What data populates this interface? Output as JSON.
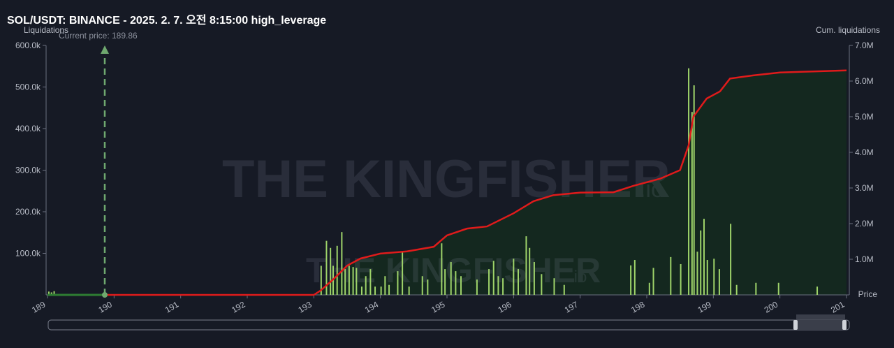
{
  "chart_data": {
    "type": "bar",
    "title": "SOL/USDT: BINANCE - 2025. 2. 7. 오전 8:15:00 high_leverage",
    "y_label": "Liquidations",
    "y2_label": "Cum. liquidations",
    "x_label": "Price",
    "annotation": {
      "text": "Current price: 189.86",
      "x": 189.86
    },
    "watermark": "THE KINGFISHER",
    "watermark_suffix": ".io",
    "xlim": [
      189,
      201
    ],
    "xticks": [
      189,
      190,
      191,
      192,
      193,
      194,
      195,
      196,
      197,
      198,
      199,
      200,
      201
    ],
    "ylim": [
      0,
      600000
    ],
    "yticks": [
      {
        "value": 100000,
        "label": "100.0k"
      },
      {
        "value": 200000,
        "label": "200.0k"
      },
      {
        "value": 300000,
        "label": "300.0k"
      },
      {
        "value": 400000,
        "label": "400.0k"
      },
      {
        "value": 500000,
        "label": "500.0k"
      },
      {
        "value": 600000,
        "label": "600.0k"
      }
    ],
    "y2lim": [
      0,
      7000000
    ],
    "y2ticks": [
      {
        "value": 1000000,
        "label": "1.0M"
      },
      {
        "value": 2000000,
        "label": "2.0M"
      },
      {
        "value": 3000000,
        "label": "3.0M"
      },
      {
        "value": 4000000,
        "label": "4.0M"
      },
      {
        "value": 5000000,
        "label": "5.0M"
      },
      {
        "value": 6000000,
        "label": "6.0M"
      },
      {
        "value": 7000000,
        "label": "7.0M"
      }
    ],
    "series": [
      {
        "type": "bar",
        "color": "#9fd46a",
        "x": [
          189.02,
          189.06,
          189.1,
          193.11,
          193.19,
          193.25,
          193.29,
          193.35,
          193.42,
          193.47,
          193.53,
          193.59,
          193.64,
          193.72,
          193.78,
          193.85,
          193.92,
          194.01,
          194.07,
          194.13,
          194.26,
          194.33,
          194.43,
          194.63,
          194.71,
          194.92,
          194.97,
          195.06,
          195.13,
          195.21,
          195.45,
          195.63,
          195.7,
          195.77,
          195.84,
          196.0,
          196.07,
          196.19,
          196.24,
          196.31,
          196.42,
          196.61,
          196.76,
          197.76,
          197.82,
          198.04,
          198.1,
          198.36,
          198.51,
          198.63,
          198.68,
          198.71,
          198.76,
          198.81,
          198.86,
          198.91,
          199.01,
          199.09,
          199.26,
          199.35,
          199.64,
          199.98,
          200.56
        ],
        "values": [
          8000,
          6000,
          9000,
          70000,
          130000,
          113000,
          70000,
          118000,
          151000,
          62000,
          70000,
          67000,
          65000,
          20000,
          45000,
          62000,
          20000,
          20000,
          45000,
          24000,
          57000,
          104000,
          20000,
          45000,
          37000,
          124000,
          62000,
          79000,
          57000,
          45000,
          37000,
          62000,
          82000,
          45000,
          40000,
          87000,
          62000,
          141000,
          113000,
          79000,
          50000,
          40000,
          24000,
          71000,
          84000,
          29000,
          65000,
          91000,
          74000,
          545000,
          440000,
          504000,
          104000,
          155000,
          183000,
          84000,
          87000,
          62000,
          171000,
          24000,
          29000,
          29000,
          20000
        ]
      },
      {
        "type": "line",
        "axis": "y2",
        "color": "#e01b1b",
        "area_color": "#14281f",
        "x": [
          189.86,
          193.0,
          193.1,
          193.3,
          193.5,
          193.7,
          194.0,
          194.4,
          194.8,
          195.0,
          195.3,
          195.6,
          196.0,
          196.3,
          196.6,
          197.0,
          197.5,
          197.8,
          198.2,
          198.5,
          198.63,
          198.7,
          198.9,
          199.1,
          199.25,
          199.6,
          200.0,
          200.5,
          201.0
        ],
        "values": [
          0,
          0,
          120000,
          450000,
          820000,
          1020000,
          1160000,
          1220000,
          1350000,
          1670000,
          1860000,
          1920000,
          2290000,
          2630000,
          2800000,
          2870000,
          2880000,
          3060000,
          3260000,
          3500000,
          4200000,
          5000000,
          5510000,
          5710000,
          6070000,
          6160000,
          6240000,
          6270000,
          6300000
        ]
      }
    ]
  }
}
